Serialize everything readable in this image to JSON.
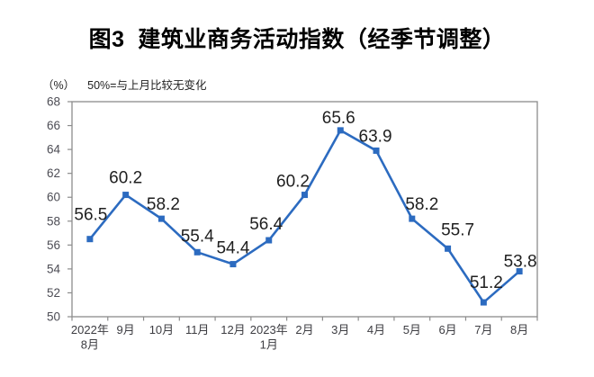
{
  "chart": {
    "title": "图3  建筑业商务活动指数（经季节调整）",
    "unit_label": "（%）",
    "note": "50%=与上月比较无变化"
  },
  "chart_data": {
    "type": "line",
    "title": "图3  建筑业商务活动指数（经季节调整）",
    "unit_note": "（%） 50%=与上月比较无变化",
    "categories": [
      "2022年\n8月",
      "9月",
      "10月",
      "11月",
      "12月",
      "2023年\n1月",
      "2月",
      "3月",
      "4月",
      "5月",
      "6月",
      "7月",
      "8月"
    ],
    "values": [
      56.5,
      60.2,
      58.2,
      55.4,
      54.4,
      56.4,
      60.2,
      65.6,
      63.9,
      58.2,
      55.7,
      51.2,
      53.8
    ],
    "ylim": [
      50,
      68
    ],
    "ytick_step": 2,
    "grid": false,
    "legend": "none",
    "data_labels": true,
    "marker": "square",
    "colors": {
      "line": "#2C6BC0",
      "axis": "#8C8C8C",
      "tick_text": "#4D4D55",
      "data_label_text": "#1F1F1F"
    }
  }
}
